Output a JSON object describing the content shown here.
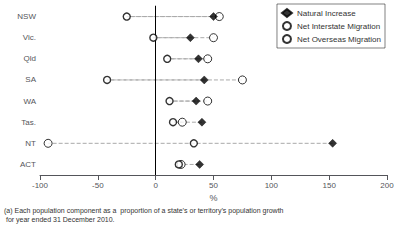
{
  "chart_data": {
    "type": "dot",
    "categories": [
      "NSW",
      "Vic.",
      "Qld",
      "SA",
      "WA",
      "Tas.",
      "NT",
      "ACT"
    ],
    "series": [
      {
        "name": "Natural Increase",
        "color": "#000000",
        "marker": "diamond",
        "values": [
          50,
          30,
          37,
          42,
          35,
          40,
          153,
          38
        ]
      },
      {
        "name": "Net Interstate Migration",
        "color": "#000000",
        "marker": "circle-open",
        "values": [
          -25,
          -2,
          10,
          -42,
          12,
          15,
          33,
          20
        ]
      },
      {
        "name": "Net Overseas Migration",
        "color": "#000000",
        "marker": "circle-open",
        "values": [
          55,
          50,
          45,
          75,
          45,
          23,
          -93,
          22
        ]
      }
    ],
    "xlabel": "%",
    "xlim": [
      -100,
      200
    ],
    "xticks": [
      -100,
      -50,
      0,
      50,
      100,
      150,
      200
    ],
    "legend": "upper right",
    "grid": false,
    "annotations": [
      "(a) Each population component as a  proportion of a state’s or territory’s population growth\n for year ended 31 December 2010."
    ]
  }
}
